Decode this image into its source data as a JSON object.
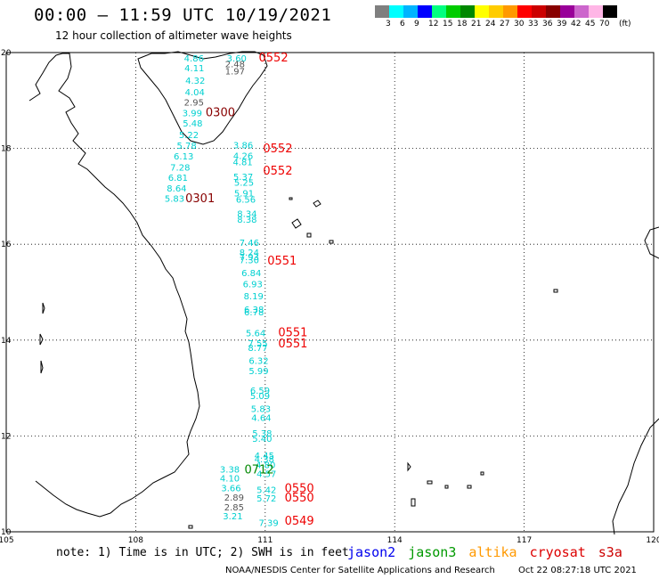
{
  "header": {
    "title": "00:00 – 11:59 UTC 10/19/2021",
    "subtitle": "12 hour collection of altimeter wave heights"
  },
  "legend": {
    "colors": [
      "#7f7f7f",
      "#00ffff",
      "#00b4ff",
      "#0000ff",
      "#00ff7f",
      "#00cc00",
      "#008800",
      "#ffff00",
      "#ffcc00",
      "#ff9900",
      "#ff0000",
      "#cc0000",
      "#880000",
      "#990099",
      "#cc66cc",
      "#ffb6e6",
      "#000000"
    ],
    "labels": [
      "3",
      "6",
      "9",
      "12",
      "15",
      "18",
      "21",
      "24",
      "27",
      "30",
      "33",
      "36",
      "39",
      "42",
      "45",
      "70"
    ],
    "unit": "(ft)"
  },
  "axes": {
    "lat_ticks": [
      "20",
      "18",
      "16",
      "14",
      "12",
      "10"
    ],
    "lon_ticks": [
      "105",
      "108",
      "111",
      "114",
      "117",
      "120"
    ]
  },
  "tracks": {
    "cyan_values": [
      {
        "t": "4.86",
        "lat": 19.81,
        "lon": 109.12
      },
      {
        "t": "3.60",
        "lat": 19.81,
        "lon": 110.11
      },
      {
        "t": "4.11",
        "lat": 19.61,
        "lon": 109.13
      },
      {
        "t": "4.32",
        "lat": 19.35,
        "lon": 109.15
      },
      {
        "t": "4.04",
        "lat": 19.11,
        "lon": 109.14
      },
      {
        "t": "3.99",
        "lat": 18.67,
        "lon": 109.08
      },
      {
        "t": "5.48",
        "lat": 18.46,
        "lon": 109.09
      },
      {
        "t": "5.22",
        "lat": 18.22,
        "lon": 109.0
      },
      {
        "t": "5.78",
        "lat": 17.99,
        "lon": 108.95
      },
      {
        "t": "3.86",
        "lat": 18.0,
        "lon": 110.26
      },
      {
        "t": "6.13",
        "lat": 17.77,
        "lon": 108.88
      },
      {
        "t": "4.26",
        "lat": 17.78,
        "lon": 110.26
      },
      {
        "t": "4.81",
        "lat": 17.65,
        "lon": 110.25
      },
      {
        "t": "7.28",
        "lat": 17.54,
        "lon": 108.8
      },
      {
        "t": "6.81",
        "lat": 17.32,
        "lon": 108.75
      },
      {
        "t": "5.37",
        "lat": 17.34,
        "lon": 110.26
      },
      {
        "t": "5.25",
        "lat": 17.22,
        "lon": 110.28
      },
      {
        "t": "8.64",
        "lat": 17.1,
        "lon": 108.72
      },
      {
        "t": "5.91",
        "lat": 17.0,
        "lon": 110.28
      },
      {
        "t": "5.83",
        "lat": 16.89,
        "lon": 108.67
      },
      {
        "t": "6.56",
        "lat": 16.87,
        "lon": 110.32
      },
      {
        "t": "8.34",
        "lat": 16.57,
        "lon": 110.35
      },
      {
        "t": "8.38",
        "lat": 16.45,
        "lon": 110.35
      },
      {
        "t": "7.46",
        "lat": 15.97,
        "lon": 110.4
      },
      {
        "t": "8.24",
        "lat": 15.76,
        "lon": 110.4
      },
      {
        "t": "7.93",
        "lat": 15.67,
        "lon": 110.4
      },
      {
        "t": "7.30",
        "lat": 15.6,
        "lon": 110.4
      },
      {
        "t": "6.84",
        "lat": 15.33,
        "lon": 110.45
      },
      {
        "t": "6.93",
        "lat": 15.1,
        "lon": 110.48
      },
      {
        "t": "8.19",
        "lat": 14.85,
        "lon": 110.5
      },
      {
        "t": "6.38",
        "lat": 14.57,
        "lon": 110.51
      },
      {
        "t": "6.78",
        "lat": 14.52,
        "lon": 110.51
      },
      {
        "t": "5.64",
        "lat": 14.08,
        "lon": 110.55
      },
      {
        "t": "7.55",
        "lat": 13.87,
        "lon": 110.6
      },
      {
        "t": "8.77",
        "lat": 13.77,
        "lon": 110.6
      },
      {
        "t": "6.32",
        "lat": 13.5,
        "lon": 110.62
      },
      {
        "t": "5.99",
        "lat": 13.29,
        "lon": 110.62
      },
      {
        "t": "6.59",
        "lat": 12.88,
        "lon": 110.65
      },
      {
        "t": "5.09",
        "lat": 12.77,
        "lon": 110.65
      },
      {
        "t": "5.83",
        "lat": 12.5,
        "lon": 110.67
      },
      {
        "t": "4.64",
        "lat": 12.31,
        "lon": 110.68
      },
      {
        "t": "5.38",
        "lat": 11.99,
        "lon": 110.7
      },
      {
        "t": "5.40",
        "lat": 11.88,
        "lon": 110.7
      },
      {
        "t": "4.45",
        "lat": 11.52,
        "lon": 110.75
      },
      {
        "t": "4.38",
        "lat": 11.45,
        "lon": 110.75
      },
      {
        "t": "4.80",
        "lat": 11.33,
        "lon": 110.78
      },
      {
        "t": "4.57",
        "lat": 11.14,
        "lon": 110.8
      },
      {
        "t": "3.38",
        "lat": 11.24,
        "lon": 109.95
      },
      {
        "t": "4.10",
        "lat": 11.05,
        "lon": 109.95
      },
      {
        "t": "3.66",
        "lat": 10.85,
        "lon": 109.98
      },
      {
        "t": "5.42",
        "lat": 10.81,
        "lon": 110.8
      },
      {
        "t": "5.72",
        "lat": 10.63,
        "lon": 110.8
      },
      {
        "t": "3.21",
        "lat": 10.26,
        "lon": 110.02
      },
      {
        "t": "7.39",
        "lat": 10.12,
        "lon": 110.85
      }
    ],
    "gray_values": [
      {
        "t": "2.48",
        "lat": 19.69,
        "lon": 110.07
      },
      {
        "t": "1.97",
        "lat": 19.54,
        "lon": 110.07
      },
      {
        "t": "2.95",
        "lat": 18.89,
        "lon": 109.12
      },
      {
        "t": "2.89",
        "lat": 10.65,
        "lon": 110.05
      },
      {
        "t": "2.85",
        "lat": 10.45,
        "lon": 110.05
      }
    ],
    "time_labels": [
      {
        "t": "0552",
        "lat": 19.81,
        "lon": 110.85,
        "sat": "cryosat"
      },
      {
        "t": "0300",
        "lat": 18.67,
        "lon": 109.62,
        "sat": "cryosat-dark"
      },
      {
        "t": "0552",
        "lat": 17.92,
        "lon": 110.95,
        "sat": "cryosat"
      },
      {
        "t": "0552",
        "lat": 17.45,
        "lon": 110.95,
        "sat": "cryosat"
      },
      {
        "t": "0301",
        "lat": 16.88,
        "lon": 109.15,
        "sat": "cryosat-dark"
      },
      {
        "t": "0551",
        "lat": 15.58,
        "lon": 111.05,
        "sat": "cryosat"
      },
      {
        "t": "0551",
        "lat": 14.08,
        "lon": 111.3,
        "sat": "cryosat"
      },
      {
        "t": "0551",
        "lat": 13.85,
        "lon": 111.3,
        "sat": "cryosat"
      },
      {
        "t": "0712",
        "lat": 11.22,
        "lon": 110.52,
        "sat": "jason3"
      },
      {
        "t": "0550",
        "lat": 10.83,
        "lon": 111.45,
        "sat": "cryosat"
      },
      {
        "t": "0550",
        "lat": 10.63,
        "lon": 111.45,
        "sat": "cryosat"
      },
      {
        "t": "0549",
        "lat": 10.15,
        "lon": 111.45,
        "sat": "cryosat"
      }
    ]
  },
  "footer": {
    "note": "note: 1) Time is in UTC; 2) SWH is in feet",
    "satellites": [
      {
        "name": "jason2",
        "color": "#0000ee"
      },
      {
        "name": "jason3",
        "color": "#009900"
      },
      {
        "name": "altika",
        "color": "#ff9900"
      },
      {
        "name": "cryosat",
        "color": "#dd0000"
      },
      {
        "name": "s3a",
        "color": "#cc0000"
      }
    ],
    "credit": "NOAA/NESDIS Center for Satellite Applications and Research",
    "timestamp": "Oct 22 08:27:18 UTC 2021"
  },
  "colors": {
    "cyan": "#00d0d0",
    "gray": "#555555",
    "time_red": "#ee0000",
    "time_darkred": "#880000",
    "time_green": "#008800"
  }
}
